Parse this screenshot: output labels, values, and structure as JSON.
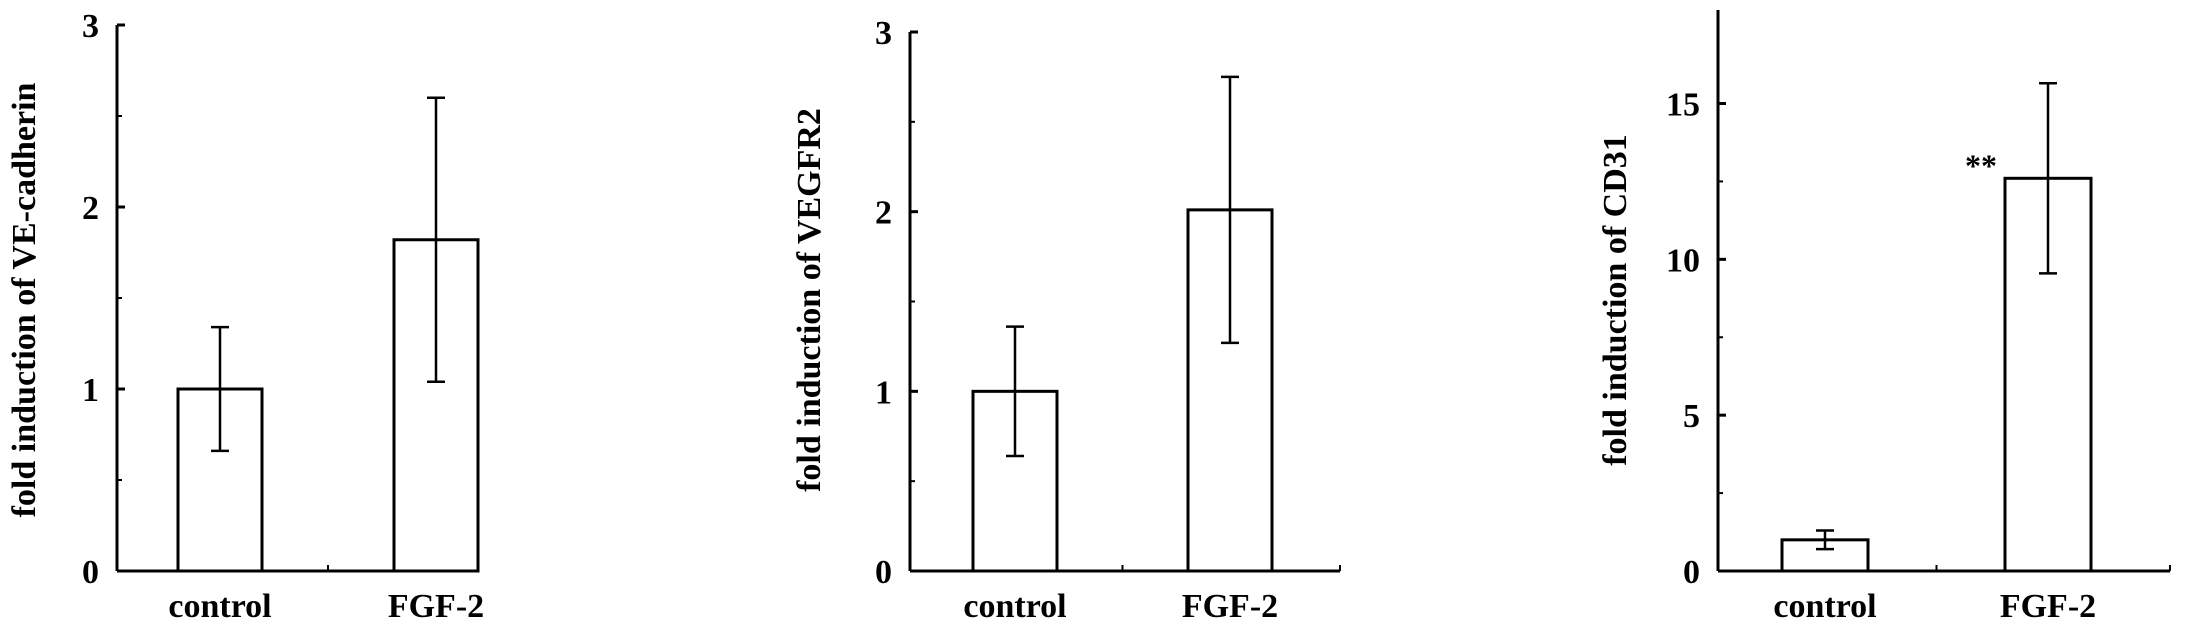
{
  "chart_data": [
    {
      "type": "bar",
      "categories": [
        "control",
        "FGF-2"
      ],
      "values": [
        1.0,
        1.82
      ],
      "error": [
        0.34,
        0.78
      ],
      "ylabel": "fold induction of VE-cadherin",
      "xlabel": "",
      "ylim": [
        0,
        3
      ],
      "yticks": [
        "0",
        "1",
        "2",
        "3"
      ],
      "annotations": [
        "",
        ""
      ]
    },
    {
      "type": "bar",
      "categories": [
        "control",
        "FGF-2"
      ],
      "values": [
        1.0,
        2.01
      ],
      "error": [
        0.36,
        0.74
      ],
      "ylabel": "fold induction of VEGFR2",
      "xlabel": "",
      "ylim": [
        0,
        3
      ],
      "yticks": [
        "0",
        "1",
        "2",
        "3"
      ],
      "annotations": [
        "",
        ""
      ]
    },
    {
      "type": "bar",
      "categories": [
        "control",
        "FGF-2"
      ],
      "values": [
        1.0,
        12.6
      ],
      "error": [
        0.3,
        3.05
      ],
      "ylabel": "fold induction of CD31",
      "xlabel": "",
      "ylim": [
        0,
        18
      ],
      "yticks": [
        "0",
        "5",
        "10",
        "15"
      ],
      "annotations": [
        "",
        "**"
      ]
    }
  ]
}
